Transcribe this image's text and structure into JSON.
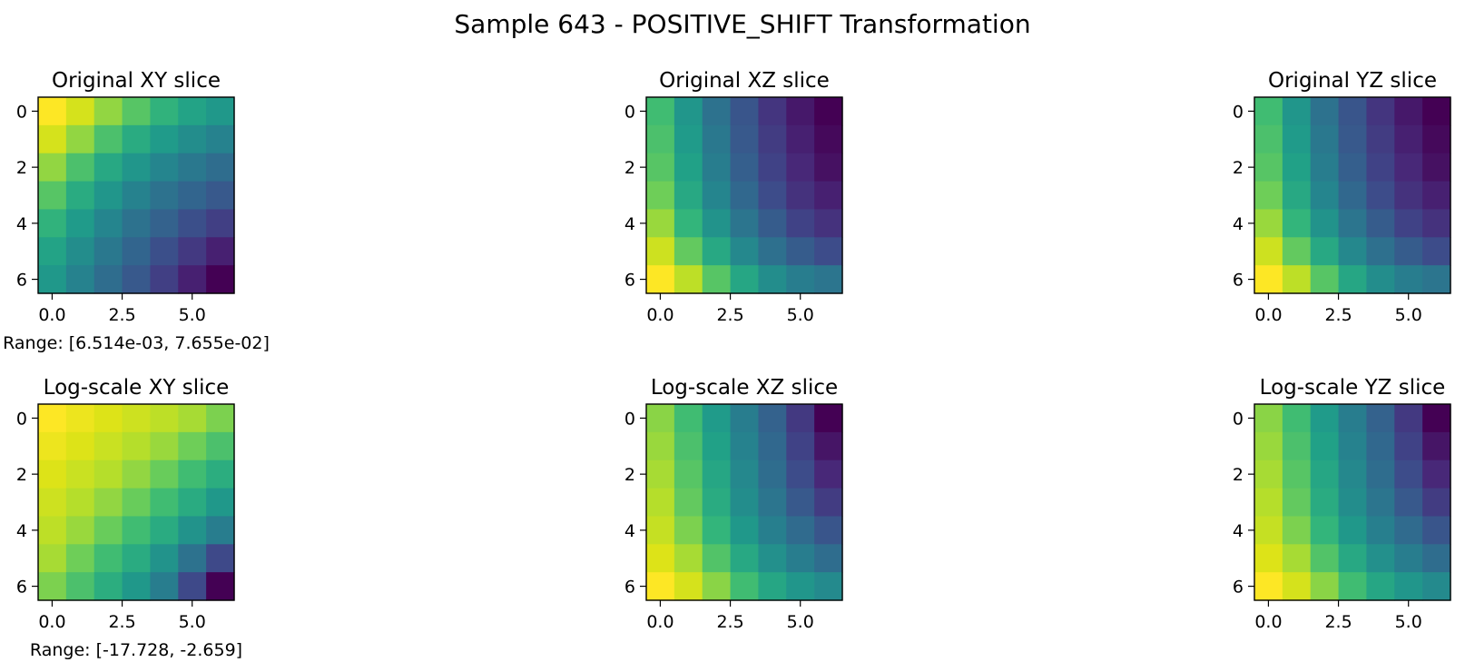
{
  "figure": {
    "title": "Sample 643 - POSITIVE_SHIFT Transformation"
  },
  "chart_data": [
    {
      "type": "heatmap",
      "title": "Original XY slice",
      "colormap": "viridis",
      "xticks": [
        "0.0",
        "2.5",
        "5.0"
      ],
      "yticks": [
        "0",
        "2",
        "4",
        "6"
      ],
      "xlim": [
        -0.5,
        6.5
      ],
      "ylim": [
        6.5,
        -0.5
      ],
      "annotation": "Range: [6.514e-03, 7.655e-02]",
      "matrix": [
        [
          1.0,
          0.88,
          0.75,
          0.66,
          0.58,
          0.52,
          0.48
        ],
        [
          0.88,
          0.75,
          0.64,
          0.55,
          0.49,
          0.44,
          0.4
        ],
        [
          0.75,
          0.64,
          0.54,
          0.47,
          0.41,
          0.36,
          0.32
        ],
        [
          0.66,
          0.55,
          0.47,
          0.4,
          0.34,
          0.29,
          0.25
        ],
        [
          0.58,
          0.49,
          0.41,
          0.34,
          0.28,
          0.22,
          0.17
        ],
        [
          0.52,
          0.44,
          0.36,
          0.29,
          0.22,
          0.15,
          0.08
        ],
        [
          0.48,
          0.4,
          0.32,
          0.25,
          0.17,
          0.08,
          0.0
        ]
      ]
    },
    {
      "type": "heatmap",
      "title": "Original XZ slice",
      "colormap": "viridis",
      "xticks": [
        "0.0",
        "2.5",
        "5.0"
      ],
      "yticks": [
        "0",
        "2",
        "4",
        "6"
      ],
      "xlim": [
        -0.5,
        6.5
      ],
      "ylim": [
        6.5,
        -0.5
      ],
      "matrix": [
        [
          0.62,
          0.47,
          0.34,
          0.24,
          0.14,
          0.06,
          0.0
        ],
        [
          0.64,
          0.49,
          0.36,
          0.25,
          0.16,
          0.08,
          0.02
        ],
        [
          0.66,
          0.51,
          0.38,
          0.27,
          0.18,
          0.1,
          0.04
        ],
        [
          0.7,
          0.54,
          0.41,
          0.3,
          0.21,
          0.13,
          0.08
        ],
        [
          0.76,
          0.59,
          0.46,
          0.35,
          0.26,
          0.18,
          0.13
        ],
        [
          0.86,
          0.68,
          0.54,
          0.42,
          0.33,
          0.26,
          0.21
        ],
        [
          1.0,
          0.82,
          0.66,
          0.53,
          0.44,
          0.38,
          0.35
        ]
      ]
    },
    {
      "type": "heatmap",
      "title": "Original YZ slice",
      "colormap": "viridis",
      "xticks": [
        "0.0",
        "2.5",
        "5.0"
      ],
      "yticks": [
        "0",
        "2",
        "4",
        "6"
      ],
      "xlim": [
        -0.5,
        6.5
      ],
      "ylim": [
        6.5,
        -0.5
      ],
      "matrix": [
        [
          0.62,
          0.47,
          0.34,
          0.24,
          0.14,
          0.06,
          0.0
        ],
        [
          0.64,
          0.49,
          0.36,
          0.25,
          0.16,
          0.08,
          0.02
        ],
        [
          0.66,
          0.51,
          0.38,
          0.27,
          0.18,
          0.1,
          0.04
        ],
        [
          0.7,
          0.54,
          0.41,
          0.3,
          0.21,
          0.13,
          0.08
        ],
        [
          0.76,
          0.59,
          0.46,
          0.35,
          0.26,
          0.18,
          0.13
        ],
        [
          0.86,
          0.68,
          0.54,
          0.42,
          0.33,
          0.26,
          0.21
        ],
        [
          1.0,
          0.82,
          0.66,
          0.53,
          0.44,
          0.38,
          0.35
        ]
      ]
    },
    {
      "type": "heatmap",
      "title": "Log-scale XY slice",
      "colormap": "viridis",
      "xticks": [
        "0.0",
        "2.5",
        "5.0"
      ],
      "yticks": [
        "0",
        "2",
        "4",
        "6"
      ],
      "xlim": [
        -0.5,
        6.5
      ],
      "ylim": [
        6.5,
        -0.5
      ],
      "annotation": "Range: [-17.728, -2.659]",
      "matrix": [
        [
          1.0,
          0.95,
          0.9,
          0.86,
          0.82,
          0.78,
          0.72
        ],
        [
          0.95,
          0.9,
          0.85,
          0.8,
          0.76,
          0.7,
          0.64
        ],
        [
          0.9,
          0.85,
          0.8,
          0.75,
          0.69,
          0.62,
          0.56
        ],
        [
          0.86,
          0.8,
          0.75,
          0.69,
          0.62,
          0.55,
          0.48
        ],
        [
          0.82,
          0.76,
          0.69,
          0.62,
          0.55,
          0.46,
          0.38
        ],
        [
          0.78,
          0.7,
          0.62,
          0.55,
          0.46,
          0.34,
          0.2
        ],
        [
          0.72,
          0.64,
          0.56,
          0.48,
          0.38,
          0.2,
          0.0
        ]
      ]
    },
    {
      "type": "heatmap",
      "title": "Log-scale XZ slice",
      "colormap": "viridis",
      "xticks": [
        "0.0",
        "2.5",
        "5.0"
      ],
      "yticks": [
        "0",
        "2",
        "4",
        "6"
      ],
      "xlim": [
        -0.5,
        6.5
      ],
      "ylim": [
        6.5,
        -0.5
      ],
      "matrix": [
        [
          0.74,
          0.62,
          0.49,
          0.38,
          0.28,
          0.15,
          0.0
        ],
        [
          0.76,
          0.64,
          0.51,
          0.4,
          0.3,
          0.18,
          0.05
        ],
        [
          0.78,
          0.66,
          0.53,
          0.42,
          0.32,
          0.21,
          0.1
        ],
        [
          0.8,
          0.68,
          0.55,
          0.44,
          0.35,
          0.25,
          0.16
        ],
        [
          0.84,
          0.72,
          0.59,
          0.48,
          0.39,
          0.31,
          0.24
        ],
        [
          0.9,
          0.78,
          0.65,
          0.54,
          0.45,
          0.38,
          0.32
        ],
        [
          1.0,
          0.88,
          0.74,
          0.62,
          0.53,
          0.47,
          0.43
        ]
      ]
    },
    {
      "type": "heatmap",
      "title": "Log-scale YZ slice",
      "colormap": "viridis",
      "xticks": [
        "0.0",
        "2.5",
        "5.0"
      ],
      "yticks": [
        "0",
        "2",
        "4",
        "6"
      ],
      "xlim": [
        -0.5,
        6.5
      ],
      "ylim": [
        6.5,
        -0.5
      ],
      "matrix": [
        [
          0.74,
          0.62,
          0.49,
          0.38,
          0.28,
          0.15,
          0.0
        ],
        [
          0.76,
          0.64,
          0.51,
          0.4,
          0.3,
          0.18,
          0.05
        ],
        [
          0.78,
          0.66,
          0.53,
          0.42,
          0.32,
          0.21,
          0.1
        ],
        [
          0.8,
          0.68,
          0.55,
          0.44,
          0.35,
          0.25,
          0.16
        ],
        [
          0.84,
          0.72,
          0.59,
          0.48,
          0.39,
          0.31,
          0.24
        ],
        [
          0.9,
          0.78,
          0.65,
          0.54,
          0.45,
          0.38,
          0.32
        ],
        [
          1.0,
          0.88,
          0.74,
          0.62,
          0.53,
          0.47,
          0.43
        ]
      ]
    }
  ]
}
